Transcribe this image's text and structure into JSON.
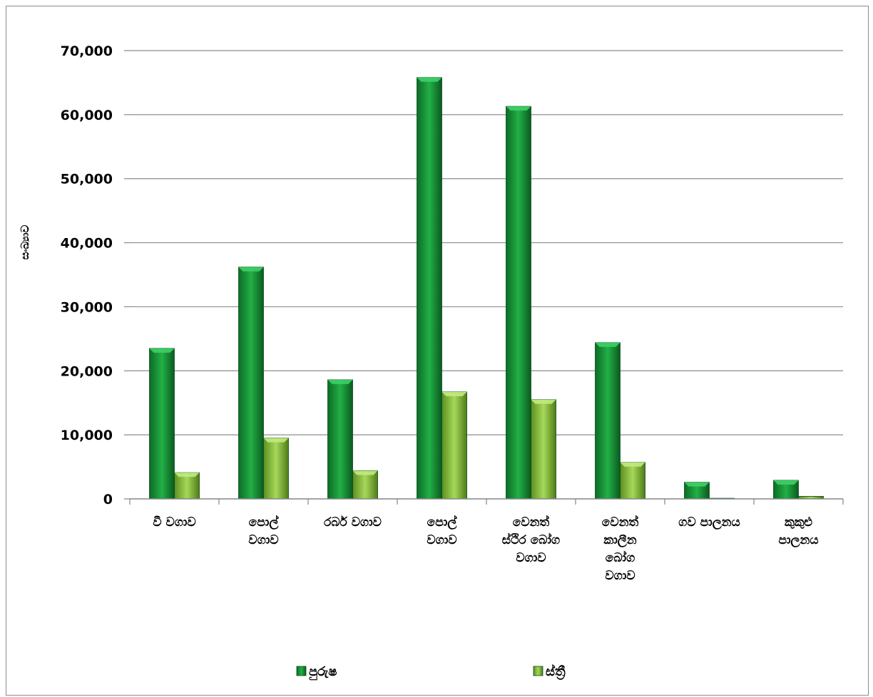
{
  "chart_data": {
    "type": "bar",
    "ylabel": "සංඛ්‍යාව",
    "ylim": [
      0,
      70000
    ],
    "yticks": [
      "0",
      "10,000",
      "20,000",
      "30,000",
      "40,000",
      "50,000",
      "60,000",
      "70,000"
    ],
    "grid": true,
    "legend_position": "bottom",
    "categories": [
      [
        "වී වගාව"
      ],
      [
        "පොල්",
        "වගාව"
      ],
      [
        "රබර් වගාව"
      ],
      [
        "පොල්",
        "වගාව"
      ],
      [
        "වෙනත්",
        "ස්ථිර බෝග",
        "වගාව"
      ],
      [
        "වෙනත්",
        "කාලීන",
        "බෝග",
        "වගාව"
      ],
      [
        "ගව පාලනය"
      ],
      [
        "කුකුළු",
        "පාලනය"
      ]
    ],
    "series": [
      {
        "name": "පුරුෂ",
        "color": "#1e9a3a",
        "values": [
          23500,
          36200,
          18600,
          65800,
          61300,
          24400,
          2600,
          2900
        ]
      },
      {
        "name": "ස්ත්‍රී",
        "color": "#8cc43a",
        "values": [
          4100,
          9500,
          4400,
          16700,
          15500,
          5700,
          100,
          400
        ]
      }
    ]
  }
}
